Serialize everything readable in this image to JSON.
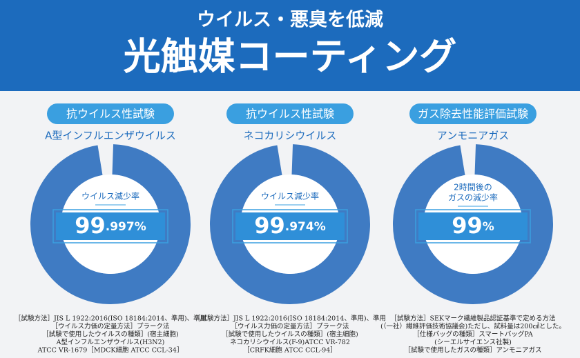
{
  "header": {
    "subtitle": "ウイルス・悪臭を低減",
    "title": "光触媒コーティング"
  },
  "columns": [
    {
      "label": "抗ウイルス性試験",
      "target": "A型インフルエンザウイルス",
      "metric": [
        "ウイルス減少率"
      ],
      "value_main": "99",
      "value_sub": ".997%",
      "notes": [
        "［試験方法］JIS L 1922:2016(ISO 18184:2014、準用)、準用",
        "［ウイルス力価の定量方法］プラーク法",
        "［試験で使用したウイルスの種類］(宿主細胞)",
        "A型インフルエンザウイルス(H3N2)",
        "ATCC VR-1679［MDCK細胞 ATCC CCL-34］"
      ]
    },
    {
      "label": "抗ウイルス性試験",
      "target": "ネコカリシウイルス",
      "metric": [
        "ウイルス減少率"
      ],
      "value_main": "99",
      "value_sub": ".974%",
      "notes": [
        "［試験方法］JIS L 1922:2016(ISO 18184:2014、準用)、準用",
        "［ウイルス力価の定量方法］プラーク法",
        "［試験で使用したウイルスの種類］(宿主細胞)",
        "ネコカリシウイルス(F-9)ATCC VR-782",
        "［CRFK細胞 ATCC CCL-94］"
      ]
    },
    {
      "label": "ガス除去性能評価試験",
      "target": "アンモニアガス",
      "metric": [
        "2時間後の",
        "ガスの減少率"
      ],
      "value_main": "99",
      "value_sub": "%",
      "notes": [
        "［試験方法］SEKマーク繊維製品認証基準で定める方法",
        "(（一社）繊維評価技術協議会)ただし、試料量は200㎠とした。",
        "［仕様バッグの種類］スマートバッグPA",
        "(シーエルサイエンス社製)",
        "［試験で使用したガスの種類］アンモニアガス"
      ]
    }
  ]
}
